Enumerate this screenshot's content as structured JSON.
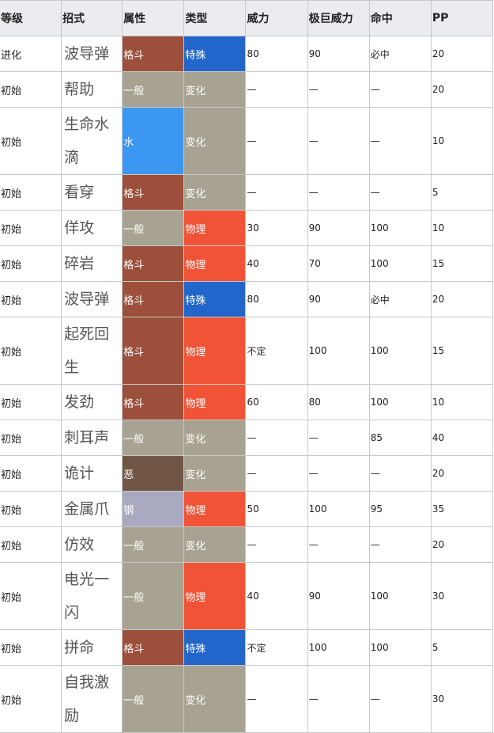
{
  "headers": [
    "等级",
    "招式",
    "属性",
    "类型",
    "威力",
    "极巨威力",
    "命中",
    "PP"
  ],
  "type_colors": {
    "格斗": "#9c4f3b",
    "一般": "#a8a292",
    "水": "#3b97f2",
    "恶": "#725645",
    "钢": "#aaa9c2"
  },
  "category_colors": {
    "特殊": "#2266cc",
    "变化": "#a8a292",
    "物理": "#f05336"
  },
  "rows": [
    {
      "level": "进化",
      "move": "波导弹",
      "type": "格斗",
      "category": "特殊",
      "power": "80",
      "max_power": "90",
      "accuracy": "必中",
      "pp": "20"
    },
    {
      "level": "初始",
      "move": "帮助",
      "type": "一般",
      "category": "变化",
      "power": "—",
      "max_power": "—",
      "accuracy": "—",
      "pp": "20"
    },
    {
      "level": "初始",
      "move": "生命水滴",
      "type": "水",
      "category": "变化",
      "power": "—",
      "max_power": "—",
      "accuracy": "—",
      "pp": "10"
    },
    {
      "level": "初始",
      "move": "看穿",
      "type": "格斗",
      "category": "变化",
      "power": "—",
      "max_power": "—",
      "accuracy": "—",
      "pp": "5"
    },
    {
      "level": "初始",
      "move": "佯攻",
      "type": "一般",
      "category": "物理",
      "power": "30",
      "max_power": "90",
      "accuracy": "100",
      "pp": "10"
    },
    {
      "level": "初始",
      "move": "碎岩",
      "type": "格斗",
      "category": "物理",
      "power": "40",
      "max_power": "70",
      "accuracy": "100",
      "pp": "15"
    },
    {
      "level": "初始",
      "move": "波导弹",
      "type": "格斗",
      "category": "特殊",
      "power": "80",
      "max_power": "90",
      "accuracy": "必中",
      "pp": "20"
    },
    {
      "level": "初始",
      "move": "起死回生",
      "type": "格斗",
      "category": "物理",
      "power": "不定",
      "max_power": "100",
      "accuracy": "100",
      "pp": "15"
    },
    {
      "level": "初始",
      "move": "发劲",
      "type": "格斗",
      "category": "物理",
      "power": "60",
      "max_power": "80",
      "accuracy": "100",
      "pp": "10"
    },
    {
      "level": "初始",
      "move": "刺耳声",
      "type": "一般",
      "category": "变化",
      "power": "—",
      "max_power": "—",
      "accuracy": "85",
      "pp": "40"
    },
    {
      "level": "初始",
      "move": "诡计",
      "type": "恶",
      "category": "变化",
      "power": "—",
      "max_power": "—",
      "accuracy": "—",
      "pp": "20"
    },
    {
      "level": "初始",
      "move": "金属爪",
      "type": "钢",
      "category": "物理",
      "power": "50",
      "max_power": "100",
      "accuracy": "95",
      "pp": "35"
    },
    {
      "level": "初始",
      "move": "仿效",
      "type": "一般",
      "category": "变化",
      "power": "—",
      "max_power": "—",
      "accuracy": "—",
      "pp": "20"
    },
    {
      "level": "初始",
      "move": "电光一闪",
      "type": "一般",
      "category": "物理",
      "power": "40",
      "max_power": "90",
      "accuracy": "100",
      "pp": "30"
    },
    {
      "level": "初始",
      "move": "拼命",
      "type": "格斗",
      "category": "特殊",
      "power": "不定",
      "max_power": "100",
      "accuracy": "100",
      "pp": "5"
    },
    {
      "level": "初始",
      "move": "自我激励",
      "type": "一般",
      "category": "变化",
      "power": "—",
      "max_power": "—",
      "accuracy": "—",
      "pp": "30"
    }
  ]
}
